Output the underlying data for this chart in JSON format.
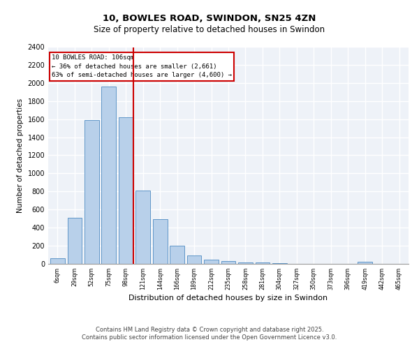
{
  "title1": "10, BOWLES ROAD, SWINDON, SN25 4ZN",
  "title2": "Size of property relative to detached houses in Swindon",
  "xlabel": "Distribution of detached houses by size in Swindon",
  "ylabel": "Number of detached properties",
  "bar_labels": [
    "6sqm",
    "29sqm",
    "52sqm",
    "75sqm",
    "98sqm",
    "121sqm",
    "144sqm",
    "166sqm",
    "189sqm",
    "212sqm",
    "235sqm",
    "258sqm",
    "281sqm",
    "304sqm",
    "327sqm",
    "350sqm",
    "373sqm",
    "396sqm",
    "419sqm",
    "442sqm",
    "465sqm"
  ],
  "bar_values": [
    55,
    510,
    1590,
    1960,
    1620,
    810,
    490,
    195,
    90,
    45,
    25,
    15,
    8,
    5,
    0,
    0,
    0,
    0,
    18,
    0,
    0
  ],
  "bar_color": "#b8d0ea",
  "bar_edge_color": "#6096c8",
  "vline_x_index": 4.42,
  "vline_color": "#cc0000",
  "annotation_box_text": "10 BOWLES ROAD: 106sqm\n← 36% of detached houses are smaller (2,661)\n63% of semi-detached houses are larger (4,600) →",
  "annotation_box_color": "#cc0000",
  "annotation_box_fill": "white",
  "ylim": [
    0,
    2400
  ],
  "yticks": [
    0,
    200,
    400,
    600,
    800,
    1000,
    1200,
    1400,
    1600,
    1800,
    2000,
    2200,
    2400
  ],
  "footer_text": "Contains HM Land Registry data © Crown copyright and database right 2025.\nContains public sector information licensed under the Open Government Licence v3.0.",
  "background_color": "#eef2f8",
  "grid_color": "white",
  "fig_bg": "white"
}
